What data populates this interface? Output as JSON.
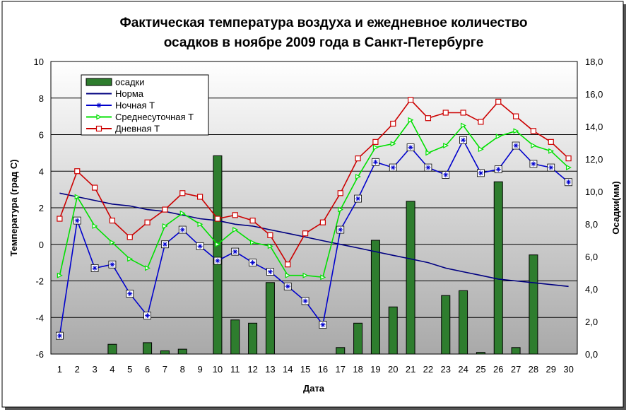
{
  "chart_data": {
    "type": "bar+line",
    "title_line1": "Фактическая температура воздуха и ежедневное количество",
    "title_line2": "осадков в ноябре 2009 года в Санкт-Петербурге",
    "xlabel": "Дата",
    "ylabel_left": "Температура (град С)",
    "ylabel_right": "Осадки(мм)",
    "ylim_left": [
      -6,
      10
    ],
    "ylim_right": [
      0,
      18
    ],
    "left_ticks": [
      "-6",
      "-4",
      "-2",
      "0",
      "2",
      "4",
      "6",
      "8",
      "10"
    ],
    "right_ticks": [
      "0,0",
      "2,0",
      "4,0",
      "6,0",
      "8,0",
      "10,0",
      "12,0",
      "14,0",
      "16,0",
      "18,0"
    ],
    "x": [
      "1",
      "2",
      "3",
      "4",
      "5",
      "6",
      "7",
      "8",
      "9",
      "10",
      "11",
      "12",
      "13",
      "14",
      "15",
      "16",
      "17",
      "18",
      "19",
      "20",
      "21",
      "22",
      "23",
      "24",
      "25",
      "26",
      "27",
      "28",
      "29",
      "30"
    ],
    "legend_position": "top-left",
    "grid": true,
    "series": [
      {
        "name": "осадки",
        "kind": "bar",
        "axis": "right",
        "color": "#2e7d2e",
        "values": [
          0,
          0,
          0,
          0.6,
          0,
          0.7,
          0.2,
          0.3,
          0,
          12.2,
          2.1,
          1.9,
          4.4,
          0,
          0,
          0,
          0.4,
          1.9,
          7.0,
          2.9,
          9.4,
          0,
          3.6,
          3.9,
          0.1,
          10.6,
          0.4,
          6.1,
          0,
          0
        ]
      },
      {
        "name": "Норма",
        "kind": "line",
        "axis": "left",
        "color": "#000080",
        "values": [
          2.8,
          2.6,
          2.4,
          2.2,
          2.1,
          1.9,
          1.8,
          1.6,
          1.4,
          1.3,
          1.1,
          1.0,
          0.8,
          0.6,
          0.4,
          0.2,
          0.0,
          -0.2,
          -0.4,
          -0.6,
          -0.8,
          -1.0,
          -1.3,
          -1.5,
          -1.7,
          -1.9,
          -2.0,
          -2.1,
          -2.2,
          -2.3
        ]
      },
      {
        "name": "Ночная Т",
        "kind": "line",
        "axis": "left",
        "color": "#0000cc",
        "marker": "star",
        "values": [
          -5.0,
          1.3,
          -1.3,
          -1.1,
          -2.7,
          -3.9,
          0.0,
          0.8,
          -0.1,
          -0.9,
          -0.4,
          -1.0,
          -1.5,
          -2.3,
          -3.1,
          -4.4,
          0.8,
          2.5,
          4.5,
          4.2,
          5.3,
          4.2,
          3.8,
          5.7,
          3.9,
          4.1,
          5.4,
          4.4,
          4.2,
          3.4
        ]
      },
      {
        "name": "Среднесуточная Т",
        "kind": "line",
        "axis": "left",
        "color": "#00e000",
        "marker": "triangle",
        "values": [
          -1.7,
          2.6,
          1.0,
          0.1,
          -0.8,
          -1.3,
          1.0,
          1.7,
          1.1,
          0.0,
          0.8,
          0.1,
          -0.1,
          -1.7,
          -1.7,
          -1.8,
          1.9,
          3.7,
          5.3,
          5.5,
          6.8,
          5.0,
          5.4,
          6.5,
          5.2,
          5.9,
          6.2,
          5.4,
          5.1,
          4.2
        ]
      },
      {
        "name": "Дневная Т",
        "kind": "line",
        "axis": "left",
        "color": "#cc0000",
        "marker": "square",
        "values": [
          1.4,
          4.0,
          3.1,
          1.3,
          0.4,
          1.2,
          1.9,
          2.8,
          2.6,
          1.4,
          1.6,
          1.3,
          0.5,
          -1.1,
          0.6,
          1.2,
          2.8,
          4.7,
          5.6,
          6.6,
          7.9,
          6.9,
          7.2,
          7.2,
          6.7,
          7.8,
          7.0,
          6.2,
          5.6,
          4.7
        ]
      }
    ]
  }
}
